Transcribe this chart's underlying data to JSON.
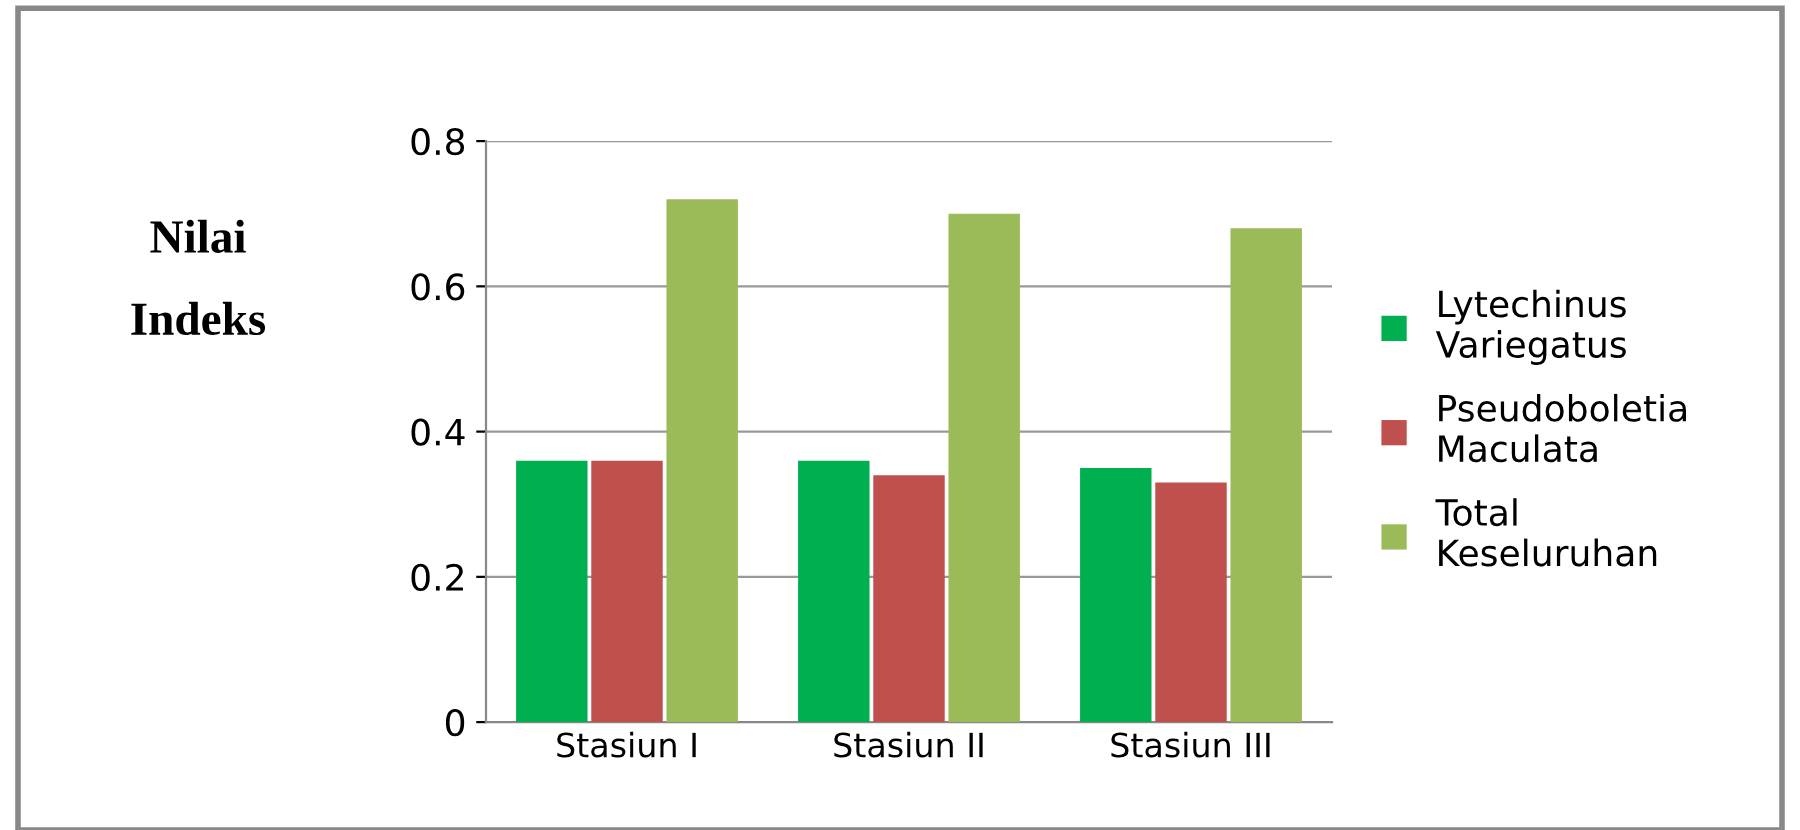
{
  "chart_data": {
    "type": "bar",
    "ylabel": "Nilai\nIndeks",
    "categories": [
      "Stasiun I",
      "Stasiun II",
      "Stasiun III"
    ],
    "series": [
      {
        "name": "Lytechinus\nVariegatus",
        "color": "#00b050",
        "values": [
          0.36,
          0.36,
          0.35
        ]
      },
      {
        "name": "Pseudoboletia\nMaculata",
        "color": "#c0504d",
        "values": [
          0.36,
          0.34,
          0.33
        ]
      },
      {
        "name": "Total\nKeseluruhan",
        "color": "#9bbb59",
        "values": [
          0.72,
          0.7,
          0.68
        ]
      }
    ],
    "ylim": [
      0,
      0.8
    ],
    "yticks": [
      {
        "value": 0,
        "label": "0"
      },
      0.2,
      0.4,
      0.6,
      0.8
    ],
    "grid": "y",
    "legend": "right"
  }
}
